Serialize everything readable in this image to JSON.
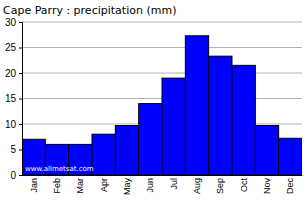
{
  "chart_data": {
    "type": "bar",
    "title": "Cape Parry : precipitation (mm)",
    "categories": [
      "Jan",
      "Feb",
      "Mar",
      "Apr",
      "May",
      "Jun",
      "Jul",
      "Aug",
      "Sep",
      "Oct",
      "Nov",
      "Dec"
    ],
    "values": [
      7,
      6,
      6,
      8,
      9.7,
      14,
      19,
      27.3,
      23.3,
      21.5,
      9.7,
      7.2
    ],
    "color": "#0000ff",
    "ylim": [
      0,
      30
    ],
    "yticks": [
      0,
      5,
      10,
      15,
      20,
      25,
      30
    ],
    "grid": true,
    "annotations": [
      "www.allmetsat.com"
    ]
  }
}
